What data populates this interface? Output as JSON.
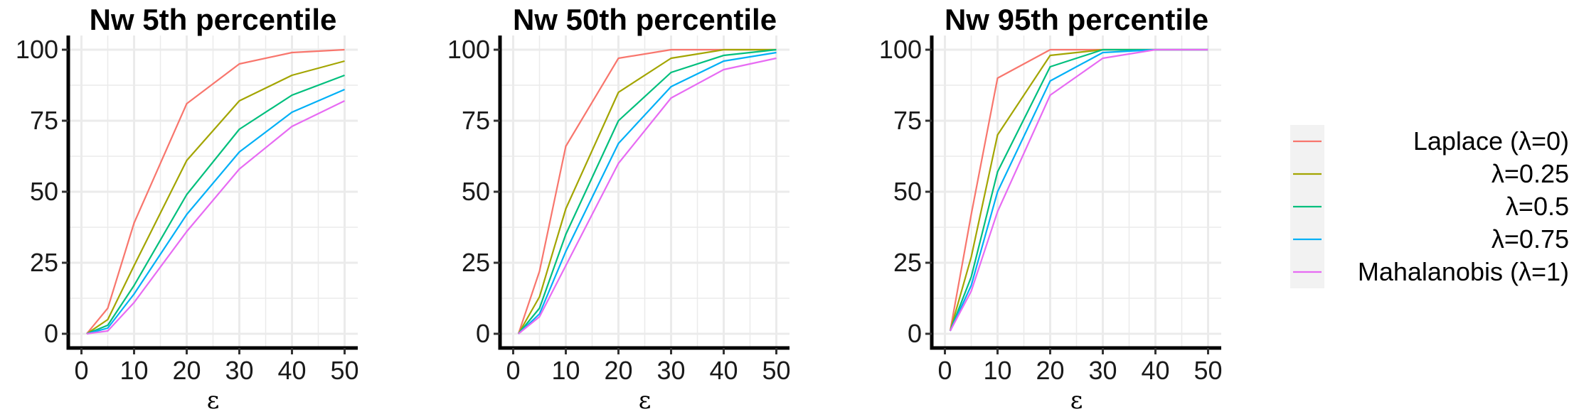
{
  "chart_data": [
    {
      "type": "line",
      "title": "Nw 5th percentile",
      "xlabel": "ε",
      "ylabel": "",
      "x": [
        1,
        5,
        10,
        20,
        30,
        40,
        50
      ],
      "xlim": [
        0,
        50
      ],
      "ylim": [
        0,
        100
      ],
      "xticks": [
        0,
        10,
        20,
        30,
        40,
        50
      ],
      "yticks": [
        0,
        25,
        50,
        75,
        100
      ],
      "grid": true,
      "series": [
        {
          "name": "Laplace (λ=0)",
          "values": [
            0,
            9,
            39,
            81,
            95,
            99,
            100
          ]
        },
        {
          "name": "λ=0.25",
          "values": [
            0,
            5,
            24,
            61,
            82,
            91,
            96
          ]
        },
        {
          "name": "λ=0.5",
          "values": [
            0,
            3,
            17,
            49,
            72,
            84,
            91
          ]
        },
        {
          "name": "λ=0.75",
          "values": [
            0,
            2,
            14,
            42,
            64,
            78,
            86
          ]
        },
        {
          "name": "Mahalanobis (λ=1)",
          "values": [
            0,
            1,
            11,
            36,
            58,
            73,
            82
          ]
        }
      ]
    },
    {
      "type": "line",
      "title": "Nw 50th percentile",
      "xlabel": "ε",
      "ylabel": "",
      "x": [
        1,
        5,
        10,
        20,
        30,
        40,
        50
      ],
      "xlim": [
        0,
        50
      ],
      "ylim": [
        0,
        100
      ],
      "xticks": [
        0,
        10,
        20,
        30,
        40,
        50
      ],
      "yticks": [
        0,
        25,
        50,
        75,
        100
      ],
      "grid": true,
      "series": [
        {
          "name": "Laplace (λ=0)",
          "values": [
            0,
            22,
            66,
            97,
            100,
            100,
            100
          ]
        },
        {
          "name": "λ=0.25",
          "values": [
            0,
            13,
            44,
            85,
            97,
            100,
            100
          ]
        },
        {
          "name": "λ=0.5",
          "values": [
            0,
            9,
            35,
            75,
            92,
            98,
            100
          ]
        },
        {
          "name": "λ=0.75",
          "values": [
            0,
            7,
            29,
            67,
            87,
            96,
            99
          ]
        },
        {
          "name": "Mahalanobis (λ=1)",
          "values": [
            0,
            6,
            24,
            60,
            83,
            93,
            97
          ]
        }
      ]
    },
    {
      "type": "line",
      "title": "Nw 95th percentile",
      "xlabel": "ε",
      "ylabel": "",
      "x": [
        1,
        5,
        10,
        20,
        30,
        40,
        50
      ],
      "xlim": [
        0,
        50
      ],
      "ylim": [
        0,
        100
      ],
      "xticks": [
        0,
        10,
        20,
        30,
        40,
        50
      ],
      "yticks": [
        0,
        25,
        50,
        75,
        100
      ],
      "grid": true,
      "series": [
        {
          "name": "Laplace (λ=0)",
          "values": [
            1,
            42,
            90,
            100,
            100,
            100,
            100
          ]
        },
        {
          "name": "λ=0.25",
          "values": [
            1,
            27,
            70,
            98,
            100,
            100,
            100
          ]
        },
        {
          "name": "λ=0.5",
          "values": [
            1,
            20,
            57,
            94,
            100,
            100,
            100
          ]
        },
        {
          "name": "λ=0.75",
          "values": [
            1,
            17,
            50,
            89,
            99,
            100,
            100
          ]
        },
        {
          "name": "Mahalanobis (λ=1)",
          "values": [
            1,
            15,
            43,
            84,
            97,
            100,
            100
          ]
        }
      ]
    }
  ],
  "legend": {
    "position": "right",
    "entries": [
      "Laplace (λ=0)",
      "λ=0.25",
      "λ=0.5",
      "λ=0.75",
      "Mahalanobis (λ=1)"
    ],
    "colors": [
      "#F8766D",
      "#A3A500",
      "#00BF7D",
      "#00B0F6",
      "#E76BF3"
    ]
  }
}
